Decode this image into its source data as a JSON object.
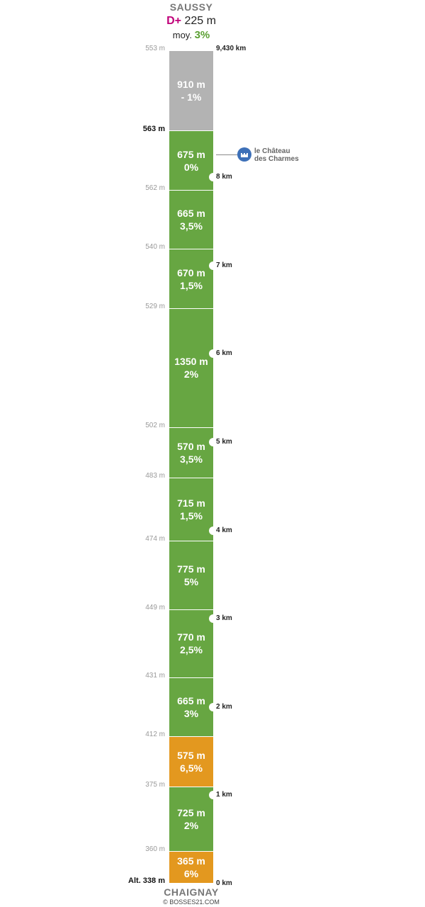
{
  "header": {
    "summit": "SAUSSY",
    "dplus_prefix": "D+",
    "dplus_value": "225 m",
    "avg_prefix": "moy.",
    "avg_value": "3%"
  },
  "footer": {
    "base": "CHAIGNAY",
    "credit": "© BOSSES21.COM"
  },
  "colors": {
    "summit_segment": "#b3b3b3",
    "gentle": "#67a642",
    "steep": "#e3981f",
    "dplus": "#c0007a",
    "avg": "#5a9f32",
    "poi": "#3d70b8"
  },
  "chart_data": {
    "type": "bar",
    "orientation": "vertical-stack",
    "total_distance_km": 9.43,
    "total_distance_label": "9,430 km",
    "base_altitude_label": "Alt. 338 m",
    "segments": [
      {
        "length_m": 365,
        "length_label": "365 m",
        "grade_label": "6%",
        "color": "steep"
      },
      {
        "length_m": 725,
        "length_label": "725 m",
        "grade_label": "2%",
        "color": "gentle"
      },
      {
        "length_m": 575,
        "length_label": "575 m",
        "grade_label": "6,5%",
        "color": "steep"
      },
      {
        "length_m": 665,
        "length_label": "665 m",
        "grade_label": "3%",
        "color": "gentle"
      },
      {
        "length_m": 770,
        "length_label": "770 m",
        "grade_label": "2,5%",
        "color": "gentle"
      },
      {
        "length_m": 775,
        "length_label": "775 m",
        "grade_label": "5%",
        "color": "gentle"
      },
      {
        "length_m": 715,
        "length_label": "715 m",
        "grade_label": "1,5%",
        "color": "gentle"
      },
      {
        "length_m": 570,
        "length_label": "570 m",
        "grade_label": "3,5%",
        "color": "gentle"
      },
      {
        "length_m": 1350,
        "length_label": "1350 m",
        "grade_label": "2%",
        "color": "gentle"
      },
      {
        "length_m": 670,
        "length_label": "670 m",
        "grade_label": "1,5%",
        "color": "gentle"
      },
      {
        "length_m": 665,
        "length_label": "665 m",
        "grade_label": "3,5%",
        "color": "gentle"
      },
      {
        "length_m": 675,
        "length_label": "675 m",
        "grade_label": "0%",
        "color": "gentle"
      },
      {
        "length_m": 910,
        "length_label": "910 m",
        "grade_label": "- 1%",
        "color": "summit_segment"
      }
    ],
    "boundary_altitudes": [
      {
        "label": "360 m",
        "strong": false
      },
      {
        "label": "375 m",
        "strong": false
      },
      {
        "label": "412 m",
        "strong": false
      },
      {
        "label": "431 m",
        "strong": false
      },
      {
        "label": "449 m",
        "strong": false
      },
      {
        "label": "474 m",
        "strong": false
      },
      {
        "label": "483 m",
        "strong": false
      },
      {
        "label": "502 m",
        "strong": false
      },
      {
        "label": "529 m",
        "strong": false
      },
      {
        "label": "540 m",
        "strong": false
      },
      {
        "label": "562 m",
        "strong": false
      },
      {
        "label": "563 m",
        "strong": true
      }
    ],
    "top_altitude_label": "553 m",
    "km_marks": [
      {
        "km": 0,
        "label": "0 km"
      },
      {
        "km": 1,
        "label": "1 km"
      },
      {
        "km": 2,
        "label": "2 km"
      },
      {
        "km": 3,
        "label": "3 km"
      },
      {
        "km": 4,
        "label": "4 km"
      },
      {
        "km": 5,
        "label": "5 km"
      },
      {
        "km": 6,
        "label": "6 km"
      },
      {
        "km": 7,
        "label": "7 km"
      },
      {
        "km": 8,
        "label": "8 km"
      }
    ],
    "poi": {
      "at_km": 8.26,
      "line1": "le Château",
      "line2": "des Charmes",
      "icon": "castle-icon"
    }
  }
}
